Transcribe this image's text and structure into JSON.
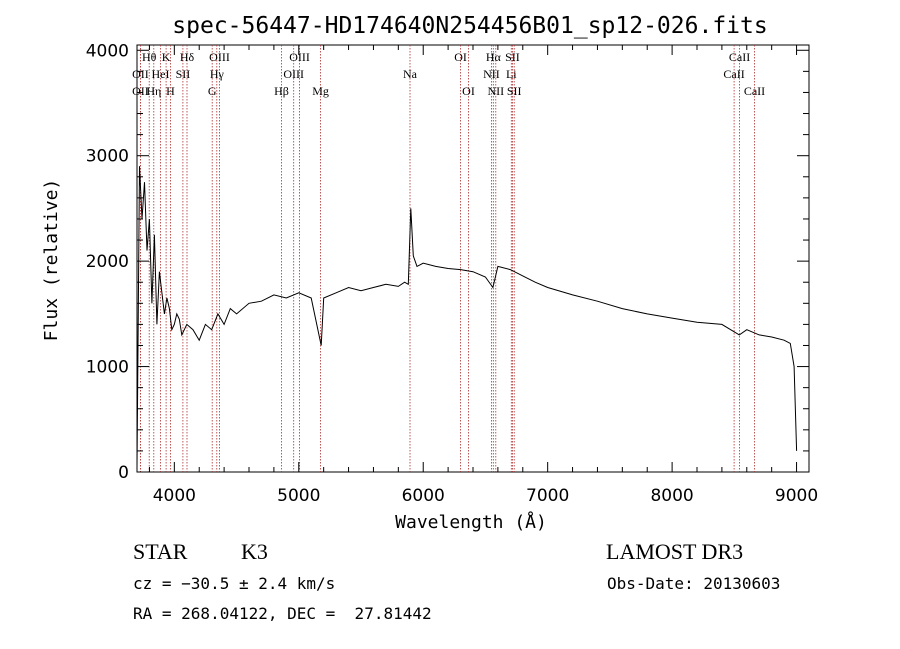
{
  "chart_data": {
    "type": "line",
    "title": "spec-56447-HD174640N254456B01_sp12-026.fits",
    "xlabel": "Wavelength (Å)",
    "ylabel": "Flux (relative)",
    "xlim": [
      3700,
      9100
    ],
    "ylim": [
      0,
      4050
    ],
    "x_ticks": [
      4000,
      5000,
      6000,
      7000,
      8000,
      9000
    ],
    "y_ticks": [
      0,
      1000,
      2000,
      3000,
      4000
    ],
    "series": [
      {
        "name": "flux",
        "x": [
          3700,
          3720,
          3740,
          3760,
          3780,
          3800,
          3820,
          3840,
          3860,
          3880,
          3900,
          3920,
          3940,
          3960,
          3980,
          4000,
          4020,
          4040,
          4060,
          4080,
          4100,
          4150,
          4200,
          4250,
          4300,
          4350,
          4400,
          4450,
          4500,
          4600,
          4700,
          4800,
          4900,
          5000,
          5100,
          5180,
          5200,
          5300,
          5400,
          5500,
          5600,
          5700,
          5800,
          5850,
          5880,
          5900,
          5920,
          5950,
          6000,
          6100,
          6200,
          6300,
          6400,
          6500,
          6560,
          6600,
          6700,
          6800,
          6900,
          7000,
          7200,
          7400,
          7600,
          7800,
          8000,
          8200,
          8400,
          8540,
          8600,
          8700,
          8800,
          8900,
          8950,
          8980,
          9000
        ],
        "y": [
          50,
          2900,
          2400,
          2750,
          2100,
          2400,
          1600,
          2250,
          1400,
          1900,
          1700,
          1500,
          1650,
          1550,
          1350,
          1400,
          1500,
          1450,
          1300,
          1350,
          1400,
          1350,
          1250,
          1400,
          1350,
          1500,
          1400,
          1550,
          1500,
          1600,
          1620,
          1680,
          1650,
          1700,
          1650,
          1200,
          1650,
          1700,
          1750,
          1720,
          1750,
          1780,
          1760,
          1800,
          1780,
          2500,
          2050,
          1950,
          1980,
          1950,
          1930,
          1920,
          1900,
          1850,
          1750,
          1950,
          1920,
          1860,
          1800,
          1750,
          1680,
          1620,
          1550,
          1500,
          1460,
          1420,
          1400,
          1300,
          1350,
          1300,
          1280,
          1250,
          1220,
          1000,
          200
        ]
      }
    ],
    "lines": [
      {
        "label": "OII",
        "x": 3727,
        "row": 2
      },
      {
        "label": "OII",
        "x": 3727,
        "row": 3
      },
      {
        "label": "Hθ",
        "x": 3798,
        "row": 1
      },
      {
        "label": "Hη",
        "x": 3835,
        "row": 3
      },
      {
        "label": "HeI",
        "x": 3889,
        "row": 2
      },
      {
        "label": "K",
        "x": 3934,
        "row": 1
      },
      {
        "label": "H",
        "x": 3968,
        "row": 3
      },
      {
        "label": "SII",
        "x": 4069,
        "row": 2
      },
      {
        "label": "Hδ",
        "x": 4102,
        "row": 1
      },
      {
        "label": "G",
        "x": 4304,
        "row": 3
      },
      {
        "label": "Hγ",
        "x": 4341,
        "row": 2
      },
      {
        "label": "OIII",
        "x": 4363,
        "row": 1
      },
      {
        "label": "Hβ",
        "x": 4861,
        "row": 3
      },
      {
        "label": "OIII",
        "x": 4959,
        "row": 2
      },
      {
        "label": "OIII",
        "x": 5007,
        "row": 1
      },
      {
        "label": "Mg",
        "x": 5175,
        "row": 3
      },
      {
        "label": "Na",
        "x": 5894,
        "row": 2
      },
      {
        "label": "OI",
        "x": 6300,
        "row": 1
      },
      {
        "label": "OI",
        "x": 6364,
        "row": 3
      },
      {
        "label": "NII",
        "x": 6548,
        "row": 2
      },
      {
        "label": "Hα",
        "x": 6563,
        "row": 1
      },
      {
        "label": "NII",
        "x": 6583,
        "row": 3
      },
      {
        "label": "SII",
        "x": 6717,
        "row": 1
      },
      {
        "label": "Li",
        "x": 6708,
        "row": 2
      },
      {
        "label": "SII",
        "x": 6731,
        "row": 3
      },
      {
        "label": "CaII",
        "x": 8498,
        "row": 2
      },
      {
        "label": "CaII",
        "x": 8542,
        "row": 1
      },
      {
        "label": "CaII",
        "x": 8662,
        "row": 3
      }
    ]
  },
  "info": {
    "object_class": "STAR",
    "subclass": "K3",
    "survey": "LAMOST DR3",
    "cz": "cz = −30.5 ± 2.4 km/s",
    "obs_date": "Obs-Date: 20130603",
    "coords": "RA = 268.04122, DEC =  27.81442"
  },
  "colors": {
    "line_marker": "#b03030",
    "spectrum": "#000000",
    "axes": "#000000"
  }
}
